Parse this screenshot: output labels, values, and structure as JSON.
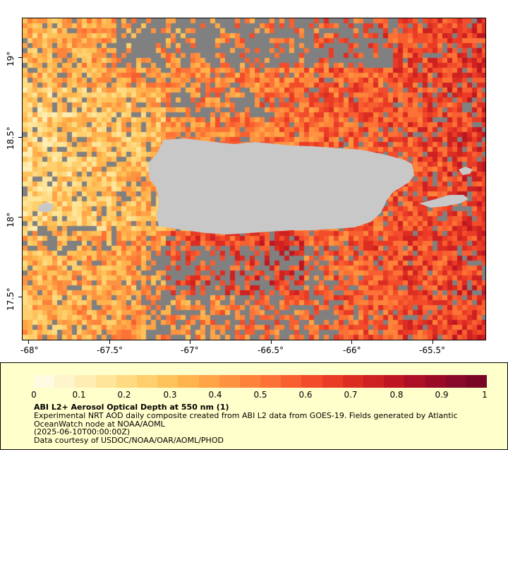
{
  "map": {
    "region": "Puerto Rico and surrounding waters",
    "lon_range": [
      -68.03,
      -65.16
    ],
    "lat_range": [
      17.23,
      19.23
    ],
    "land_color": "#c8c8c8",
    "missing_color": "#808080",
    "lon_ticks": [
      "-68°",
      "-67.5°",
      "-67°",
      "-66.5°",
      "-66°",
      "-65.5°"
    ],
    "lat_ticks": [
      "19°",
      "18.5°",
      "18°",
      "17.5°"
    ]
  },
  "colorbar": {
    "min": 0,
    "max": 1,
    "labels": [
      "0",
      "0.1",
      "0.2",
      "0.3",
      "0.4",
      "0.5",
      "0.6",
      "0.7",
      "0.8",
      "0.9",
      "1"
    ],
    "colors": [
      "#fffbe3",
      "#fff5cc",
      "#ffeeb3",
      "#ffe599",
      "#fedb82",
      "#fecf6c",
      "#fec25a",
      "#feb34c",
      "#fea446",
      "#fd9340",
      "#fd823a",
      "#fc7135",
      "#f85f30",
      "#f24c2b",
      "#e93b26",
      "#dc2d22",
      "#ce2121",
      "#bf1721",
      "#ad0f24",
      "#9a0a26",
      "#870828",
      "#7a0625"
    ]
  },
  "legend": {
    "title": "ABI L2+ Aerosol Optical Depth at 550 nm (1)",
    "description_lines": [
      "Experimental NRT AOD daily composite created from ABI L2 data from GOES-19. Fields generated by Atlantic",
      "OceanWatch node at NOAA/AOML",
      "(2025-06-10T00:00:00Z)",
      "Data courtesy of USDOC/NOAA/OAR/AOML/PHOD"
    ]
  }
}
